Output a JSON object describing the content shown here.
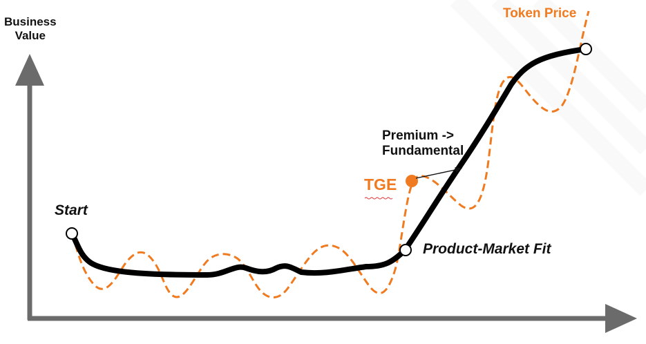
{
  "colors": {
    "background": "#ffffff",
    "axis": "#6b6b6b",
    "business_value_line": "#000000",
    "token_price_line": "#f07a1f",
    "label_text": "#111111",
    "accent_orange": "#f07a1f"
  },
  "diagram": {
    "y_axis_title": [
      "Business",
      "Value"
    ],
    "token_price_label": "Token Price",
    "start_label": "Start",
    "product_market_fit_label": "Product-Market Fit",
    "tge_label": "TGE",
    "premium_label": [
      "Premium ->",
      "Fundamental"
    ]
  }
}
